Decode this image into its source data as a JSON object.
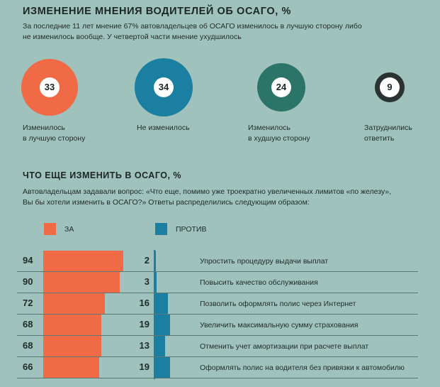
{
  "section1": {
    "title": "ИЗМЕНЕНИЕ МНЕНИЯ ВОДИТЕЛЕЙ ОБ ОСАГО, %",
    "subtitle_line1": "За последние 11 лет мнение 67% автовладельцев об ОСАГО изменилось в лучшую сторону либо",
    "subtitle_line2": "не изменилось вообще. У четвертой части мнение ухудшилось"
  },
  "section2": {
    "title": "ЧТО ЕЩЕ ИЗМЕНИТЬ В ОСАГО, %",
    "subtitle_line1": "Автовладельцам задавали вопрос: «Что еще, помимо уже троекратно увеличенных лимитов «по железу»,",
    "subtitle_line2": "Вы бы хотели изменить в ОСАГО?» Ответы распределились следующим образом:"
  },
  "colors": {
    "za": "#ef6a45",
    "protiv": "#1a7fa0",
    "better": "#ef6a45",
    "same": "#1a7fa0",
    "worse": "#2c7468",
    "unsure": "#2b3232"
  },
  "chart_data": [
    {
      "type": "bubble",
      "categories": [
        "Изменилось в лучшую сторону",
        "Не изменилось",
        "Изменилось в худшую сторону",
        "Затруднились ответить"
      ],
      "values": [
        33,
        34,
        24,
        9
      ],
      "label_lines": [
        [
          "Изменилось",
          "в лучшую сторону"
        ],
        [
          "Не изменилось"
        ],
        [
          "Изменилось",
          "в худшую сторону"
        ],
        [
          "Затруднились",
          "ответить"
        ]
      ]
    },
    {
      "type": "bar",
      "categories": [
        "Упростить процедуру выдачи выплат",
        "Повысить качество обслуживания",
        "Позволить оформлять полис через Интернет",
        "Увеличить максимальную сумму страхования",
        "Отменить учет амортизации при расчете выплат",
        "Оформлять полис на водителя без привязки к автомобилю"
      ],
      "series": [
        {
          "name": "ЗА",
          "values": [
            94,
            90,
            72,
            68,
            68,
            66
          ]
        },
        {
          "name": "ПРОТИВ",
          "values": [
            2,
            3,
            16,
            19,
            13,
            19
          ]
        }
      ],
      "legend": "top-left"
    }
  ]
}
